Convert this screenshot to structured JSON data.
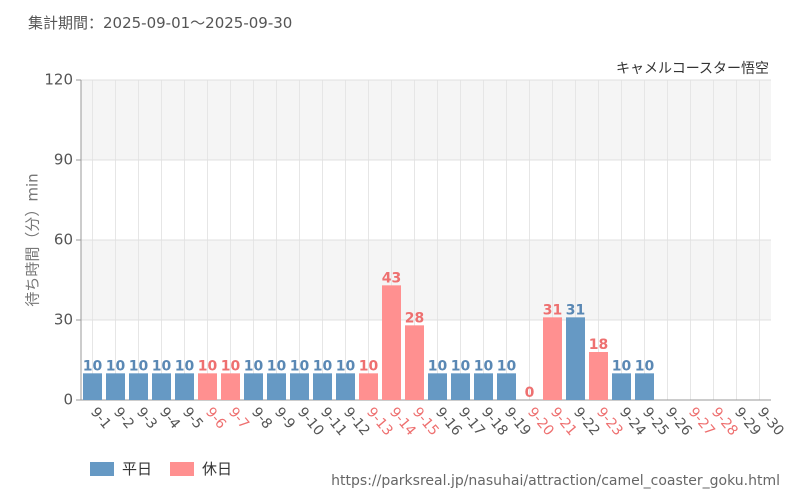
{
  "period": "集計期間：2025-09-01～2025-09-30",
  "url": "https://parksreal.jp/nasuhai/attraction/camel_coaster_goku.html",
  "colors": {
    "weekday": "#6699c4",
    "holiday": "#ff9090",
    "weekday_label": "#5a88b4",
    "holiday_label": "#ee7070"
  },
  "legend": [
    {
      "key": "weekday",
      "label": "平日"
    },
    {
      "key": "holiday",
      "label": "休日"
    }
  ],
  "chart_data": {
    "type": "bar",
    "title": "キャメルコースター悟空",
    "ylabel": "待ち時間（分）min",
    "ylim": [
      0,
      120
    ],
    "yticks": [
      0,
      30,
      60,
      90,
      120
    ],
    "categories": [
      "9-1",
      "9-2",
      "9-3",
      "9-4",
      "9-5",
      "9-6",
      "9-7",
      "9-8",
      "9-9",
      "9-10",
      "9-11",
      "9-12",
      "9-13",
      "9-14",
      "9-15",
      "9-16",
      "9-17",
      "9-18",
      "9-19",
      "9-20",
      "9-21",
      "9-22",
      "9-23",
      "9-24",
      "9-25",
      "9-26",
      "9-27",
      "9-28",
      "9-29",
      "9-30"
    ],
    "day_type": [
      "weekday",
      "weekday",
      "weekday",
      "weekday",
      "weekday",
      "holiday",
      "holiday",
      "weekday",
      "weekday",
      "weekday",
      "weekday",
      "weekday",
      "holiday",
      "holiday",
      "holiday",
      "weekday",
      "weekday",
      "weekday",
      "weekday",
      "holiday",
      "holiday",
      "weekday",
      "holiday",
      "weekday",
      "weekday",
      "weekday",
      "holiday",
      "holiday",
      "weekday",
      "weekday"
    ],
    "values": [
      10,
      10,
      10,
      10,
      10,
      10,
      10,
      10,
      10,
      10,
      10,
      10,
      10,
      43,
      28,
      10,
      10,
      10,
      10,
      0,
      31,
      31,
      18,
      10,
      10,
      null,
      null,
      null,
      null,
      null
    ],
    "grid": true,
    "legend_position": "bottom-left"
  }
}
